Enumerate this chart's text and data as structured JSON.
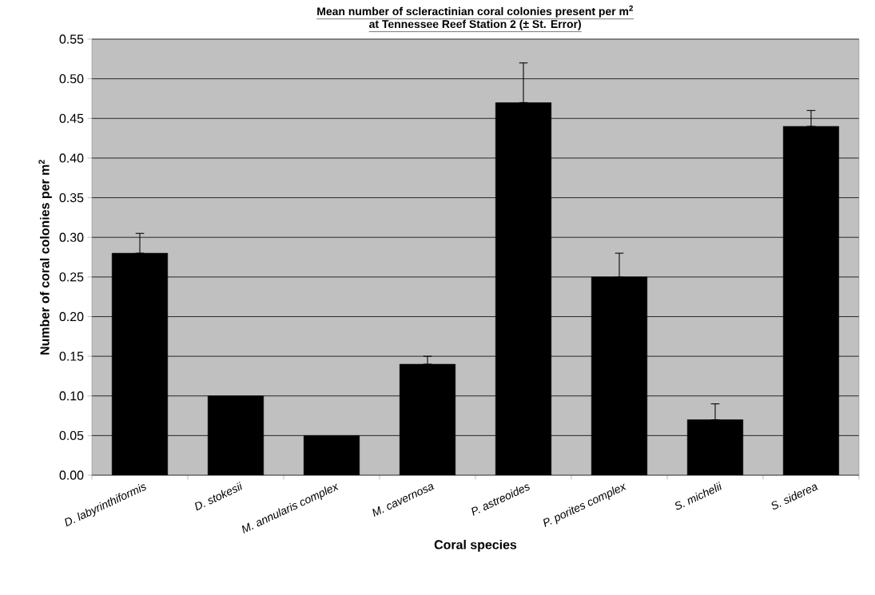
{
  "chart_data": {
    "type": "bar",
    "title": "Mean number of scleractinian coral colonies present per m$^{2}$",
    "subtitle": "at Tennessee Reef Station 2 (± St. Error)",
    "xlabel": "Coral species",
    "ylabel": "Number of coral colonies per m$^{2}$",
    "categories": [
      "D. labyrinthiformis",
      "D. stokesii",
      "M. annularis complex",
      "M. cavernosa",
      "P. astreoides",
      "P. porites complex",
      "S. michelii",
      "S. siderea"
    ],
    "values": [
      0.28,
      0.1,
      0.05,
      0.14,
      0.47,
      0.25,
      0.07,
      0.44
    ],
    "errors": [
      [
        0.28,
        0.305
      ],
      null,
      null,
      [
        0.14,
        0.15
      ],
      [
        0.47,
        0.52
      ],
      [
        0.25,
        0.28
      ],
      [
        0.07,
        0.09
      ],
      [
        0.44,
        0.46
      ]
    ],
    "color": "#000000",
    "ylim": [
      0,
      0.55
    ],
    "yticks": [
      {
        "value": 0,
        "label": "0.00"
      },
      {
        "value": 0.05,
        "label": "0.05"
      },
      {
        "value": 0.1,
        "label": "0.10"
      },
      {
        "value": 0.15,
        "label": "0.15"
      },
      {
        "value": 0.2,
        "label": "0.20"
      },
      {
        "value": 0.25,
        "label": "0.25"
      },
      {
        "value": 0.3,
        "label": "0.30"
      },
      {
        "value": 0.35,
        "label": "0.35"
      },
      {
        "value": 0.4,
        "label": "0.40"
      },
      {
        "value": 0.45,
        "label": "0.45"
      },
      {
        "value": 0.5,
        "label": "0.50"
      },
      {
        "value": 0.55,
        "label": "0.55"
      }
    ],
    "grid": "y"
  }
}
